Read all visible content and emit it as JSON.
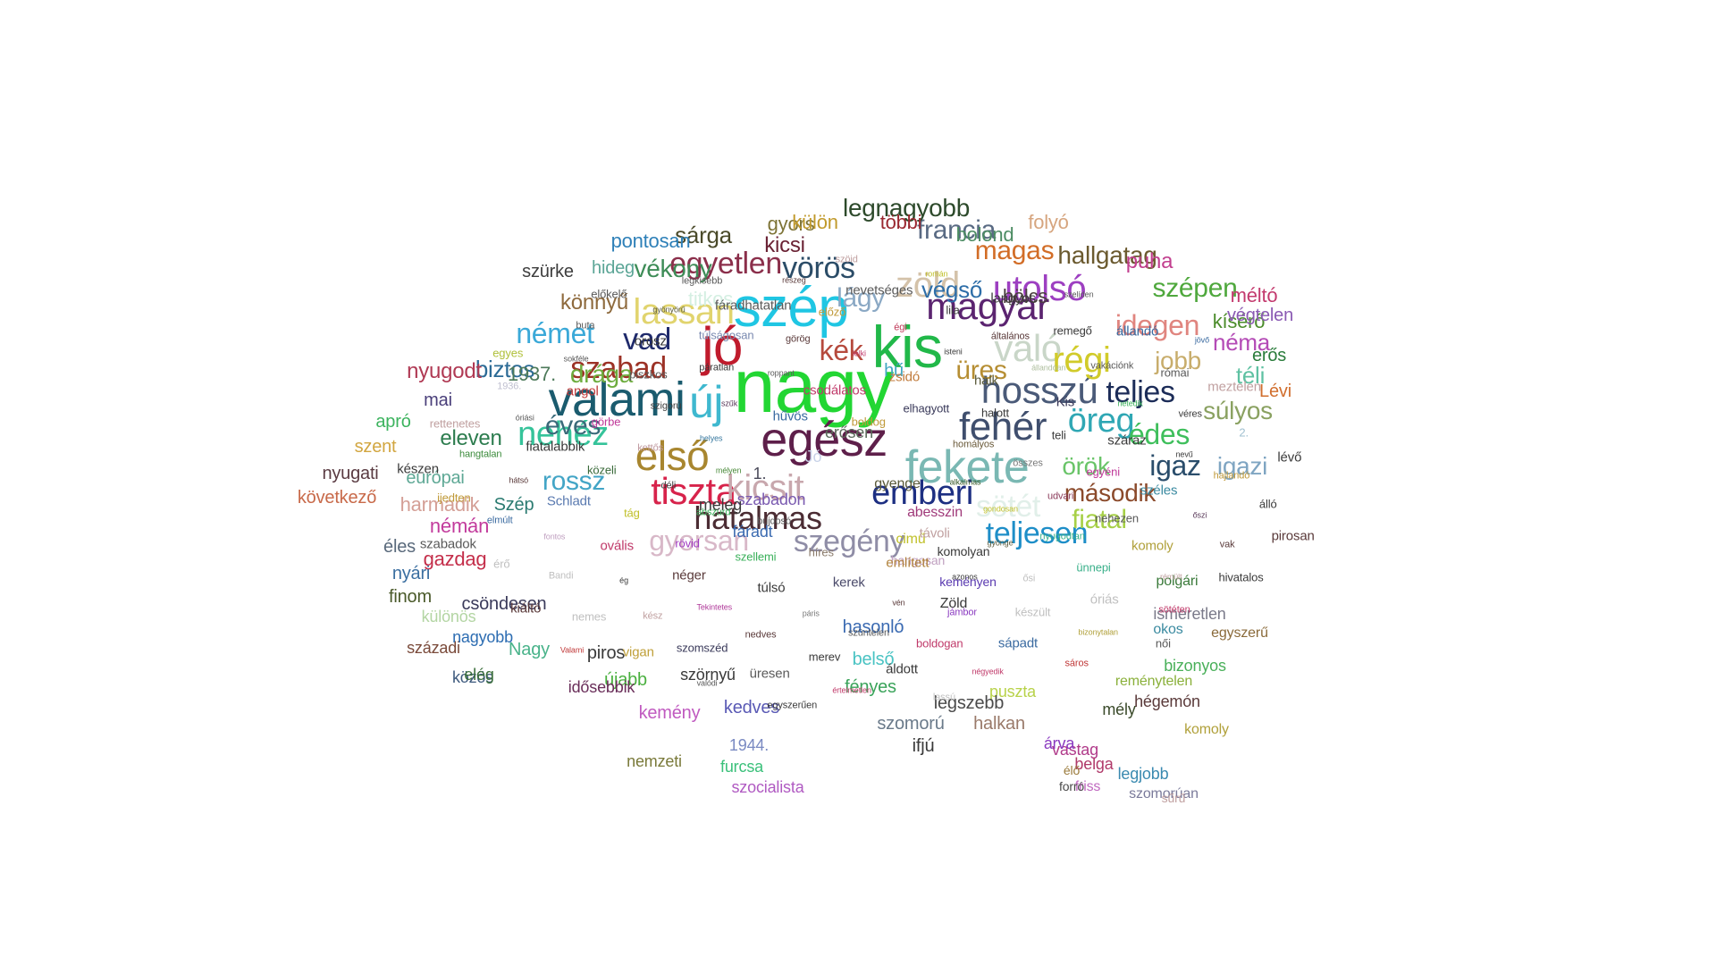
{
  "words": [
    {
      "text": "nagy",
      "color": "#22d633"
    },
    {
      "text": "kis",
      "color": "#21b849"
    },
    {
      "text": "szép",
      "color": "#1fc6e3"
    },
    {
      "text": "jó",
      "color": "#c01b2c"
    },
    {
      "text": "egész",
      "color": "#5e1f4a"
    },
    {
      "text": "valami",
      "color": "#1a5b6e"
    },
    {
      "text": "új",
      "color": "#3fb8cf"
    },
    {
      "text": "fekete",
      "color": "#7ab8b3"
    },
    {
      "text": "első",
      "color": "#a8862f"
    },
    {
      "text": "fehér",
      "color": "#3f4e6d"
    },
    {
      "text": "hosszú",
      "color": "#4a5a78"
    },
    {
      "text": "tiszta",
      "color": "#d7234b"
    },
    {
      "text": "magyar",
      "color": "#5b2470"
    },
    {
      "text": "kicsit",
      "color": "#c8a7ad"
    },
    {
      "text": "való",
      "color": "#c9d6c8"
    },
    {
      "text": "régi",
      "color": "#d1cb2a"
    },
    {
      "text": "öreg",
      "color": "#2fa7b4"
    },
    {
      "text": "emberi",
      "color": "#1d2f82"
    },
    {
      "text": "hatalmas",
      "color": "#4b2c33"
    },
    {
      "text": "zöld",
      "color": "#d4c2a9"
    },
    {
      "text": "utolsó",
      "color": "#9d3fc1"
    },
    {
      "text": "lassan",
      "color": "#e1d46e"
    },
    {
      "text": "nehéz",
      "color": "#35c39a"
    },
    {
      "text": "egyetlen",
      "color": "#8b2f4b"
    },
    {
      "text": "szabad",
      "color": "#9c3226"
    },
    {
      "text": "teljesen",
      "color": "#1e8ec8"
    },
    {
      "text": "szegény",
      "color": "#8f8da6"
    },
    {
      "text": "gyorsan",
      "color": "#d8b8c8"
    },
    {
      "text": "sötét",
      "color": "#e1efe9"
    },
    {
      "text": "vörös",
      "color": "#2b4c67"
    },
    {
      "text": "kék",
      "color": "#b64a3d"
    },
    {
      "text": "vad",
      "color": "#1f2a6b"
    },
    {
      "text": "német",
      "color": "#3ba9d8"
    },
    {
      "text": "rossz",
      "color": "#43a5c6"
    },
    {
      "text": "éves",
      "color": "#3a6a7a"
    },
    {
      "text": "teljes",
      "color": "#1c2c58"
    },
    {
      "text": "idegen",
      "color": "#e0857f"
    },
    {
      "text": "igaz",
      "color": "#2a4d6b"
    },
    {
      "text": "igazi",
      "color": "#7fa5c2"
    },
    {
      "text": "édes",
      "color": "#3fbf5c"
    },
    {
      "text": "jobb",
      "color": "#c8ad6c"
    },
    {
      "text": "fiatal",
      "color": "#a7d047"
    },
    {
      "text": "örök",
      "color": "#69c468"
    },
    {
      "text": "második",
      "color": "#8b4a2b"
    },
    {
      "text": "francia",
      "color": "#596a83"
    },
    {
      "text": "magas",
      "color": "#d26d27"
    },
    {
      "text": "szépen",
      "color": "#4fa83d"
    },
    {
      "text": "üres",
      "color": "#b68e33"
    },
    {
      "text": "súlyos",
      "color": "#8aa161"
    },
    {
      "text": "téli",
      "color": "#5ec1a2"
    },
    {
      "text": "hallgatag",
      "color": "#6b5a2f"
    },
    {
      "text": "puha",
      "color": "#c2408f"
    },
    {
      "text": "néma",
      "color": "#b44bb6"
    },
    {
      "text": "kísérő",
      "color": "#4b8c2b"
    },
    {
      "text": "erős",
      "color": "#2a7c3b"
    },
    {
      "text": "méltó",
      "color": "#c33a6e"
    },
    {
      "text": "végtelen",
      "color": "#8a5ab3"
    },
    {
      "text": "Lévi",
      "color": "#d16f2f"
    },
    {
      "text": "legnagyobb",
      "color": "#2d4a2b"
    },
    {
      "text": "sárga",
      "color": "#4a4a2a"
    },
    {
      "text": "vékony",
      "color": "#3e8c57"
    },
    {
      "text": "kicsi",
      "color": "#6a2234"
    },
    {
      "text": "lágy",
      "color": "#8aa8c4"
    },
    {
      "text": "végső",
      "color": "#2e6ea8"
    },
    {
      "text": "bölcs",
      "color": "#4b3f3f"
    },
    {
      "text": "folyó",
      "color": "#d6a57f"
    },
    {
      "text": "bolond",
      "color": "#4c8c63"
    },
    {
      "text": "többi",
      "color": "#9a2830"
    },
    {
      "text": "gyors",
      "color": "#7e7437"
    },
    {
      "text": "külön",
      "color": "#c19a2c"
    },
    {
      "text": "pontosan",
      "color": "#2e80b8"
    },
    {
      "text": "hideg",
      "color": "#5ba596"
    },
    {
      "text": "szürke",
      "color": "#3e3e3e"
    },
    {
      "text": "könnyű",
      "color": "#8e6a3d"
    },
    {
      "text": "titkos",
      "color": "#d4efe2"
    },
    {
      "text": "drága",
      "color": "#6dac3e"
    },
    {
      "text": "biztos",
      "color": "#2c6b96"
    },
    {
      "text": "nyugodt",
      "color": "#b03a54"
    },
    {
      "text": "1937.",
      "color": "#4d7a5a"
    },
    {
      "text": "hű",
      "color": "#40a6c2"
    },
    {
      "text": "mai",
      "color": "#4a3f7a"
    },
    {
      "text": "eleven",
      "color": "#2c7c4e"
    },
    {
      "text": "apró",
      "color": "#3cb35e"
    },
    {
      "text": "szent",
      "color": "#d2a640"
    },
    {
      "text": "nyugati",
      "color": "#5a3b42"
    },
    {
      "text": "következő",
      "color": "#c86a4a"
    },
    {
      "text": "európai",
      "color": "#5ea895"
    },
    {
      "text": "némán",
      "color": "#c23a9c"
    },
    {
      "text": "harmadik",
      "color": "#d49f96"
    },
    {
      "text": "Szép",
      "color": "#2b7b71"
    },
    {
      "text": "éles",
      "color": "#5a6a7c"
    },
    {
      "text": "gazdag",
      "color": "#c42e4a"
    },
    {
      "text": "nyári",
      "color": "#3a6ea0"
    },
    {
      "text": "finom",
      "color": "#4a5a2a"
    },
    {
      "text": "különös",
      "color": "#b3d5a3"
    },
    {
      "text": "századi",
      "color": "#7a4a3a"
    },
    {
      "text": "csöndesen",
      "color": "#3a3a5a"
    },
    {
      "text": "Nagy",
      "color": "#49b38a"
    },
    {
      "text": "nagyobb",
      "color": "#2d6db2"
    },
    {
      "text": "közös",
      "color": "#3e5a7e"
    },
    {
      "text": "elég",
      "color": "#3a6e3a"
    },
    {
      "text": "piros",
      "color": "#3a3a3a"
    },
    {
      "text": "újabb",
      "color": "#4ab03f"
    },
    {
      "text": "idősebbik",
      "color": "#6a2f5a"
    },
    {
      "text": "kemény",
      "color": "#c05ac0"
    },
    {
      "text": "kedves",
      "color": "#5a5ab5"
    },
    {
      "text": "szomorú",
      "color": "#6a7a8a"
    },
    {
      "text": "halkan",
      "color": "#9a7a6a"
    },
    {
      "text": "puszta",
      "color": "#b8d24a"
    },
    {
      "text": "legszebb",
      "color": "#4a4a4a"
    },
    {
      "text": "fényes",
      "color": "#3aa35a"
    },
    {
      "text": "hasonló",
      "color": "#3a6ab2"
    },
    {
      "text": "belső",
      "color": "#4ac3c3"
    },
    {
      "text": "1944.",
      "color": "#7a8ac2"
    },
    {
      "text": "szörnyű",
      "color": "#3a3a3a"
    },
    {
      "text": "furcsa",
      "color": "#3ac07a"
    },
    {
      "text": "nemzeti",
      "color": "#7a7a3a"
    },
    {
      "text": "szocialista",
      "color": "#b05ac2"
    },
    {
      "text": "ifjú",
      "color": "#3a3a3a"
    },
    {
      "text": "vastag",
      "color": "#b03a8a"
    },
    {
      "text": "mély",
      "color": "#3a4a2a"
    },
    {
      "text": "hégemón",
      "color": "#5a3a3a"
    },
    {
      "text": "bizonyos",
      "color": "#4ab05a"
    },
    {
      "text": "egyszerű",
      "color": "#8a6a3a"
    },
    {
      "text": "ismeretlen",
      "color": "#7a7a8a"
    },
    {
      "text": "okos",
      "color": "#3a8aa0"
    },
    {
      "text": "polgári",
      "color": "#3a7a3a"
    },
    {
      "text": "reménytelen",
      "color": "#8ab03a"
    },
    {
      "text": "komoly",
      "color": "#b0a03a"
    },
    {
      "text": "legjobb",
      "color": "#3a8ab0"
    },
    {
      "text": "szomorúan",
      "color": "#7a7a9a"
    },
    {
      "text": "belga",
      "color": "#b03a6a"
    },
    {
      "text": "friss",
      "color": "#c06ac0"
    },
    {
      "text": "sűrű",
      "color": "#c0a0a0"
    },
    {
      "text": "forró",
      "color": "#4a4a4a"
    },
    {
      "text": "árva",
      "color": "#8a3ac0"
    },
    {
      "text": "élő",
      "color": "#9a7a3a"
    },
    {
      "text": "1.",
      "color": "#4a4a5a"
    },
    {
      "text": "Jó",
      "color": "#c8d2e8"
    },
    {
      "text": "erősen",
      "color": "#5a6a5a"
    },
    {
      "text": "szabadon",
      "color": "#7a5ab0"
    },
    {
      "text": "fáradt",
      "color": "#3a6ab0"
    },
    {
      "text": "meleg",
      "color": "#3a3a3a"
    },
    {
      "text": "gyenge",
      "color": "#5a5a3a"
    },
    {
      "text": "abesszin",
      "color": "#a03a7a"
    },
    {
      "text": "cimű",
      "color": "#c0c02a"
    },
    {
      "text": "Zöld",
      "color": "#3a3a3a"
    },
    {
      "text": "keményen",
      "color": "#5a3ab0"
    },
    {
      "text": "hangosan",
      "color": "#c0a0c0"
    },
    {
      "text": "komolyan",
      "color": "#3a3a3a"
    },
    {
      "text": "alkalmas",
      "color": "#3a5a2a"
    },
    {
      "text": "bujdosó",
      "color": "#5a5a5a"
    },
    {
      "text": "boldog",
      "color": "#c09a3a"
    },
    {
      "text": "távoli",
      "color": "#c0a0a0"
    },
    {
      "text": "mélyen",
      "color": "#4a8a3a"
    },
    {
      "text": "homályos",
      "color": "#6a5a3a"
    },
    {
      "text": "híres",
      "color": "#8a7a6a"
    },
    {
      "text": "hűvös",
      "color": "#3a6aa0"
    },
    {
      "text": "gondosan",
      "color": "#c0c02a"
    },
    {
      "text": "abszurd",
      "color": "#3ab05a"
    },
    {
      "text": "elhagyott",
      "color": "#3a3a5a"
    },
    {
      "text": "említett",
      "color": "#b0803a"
    },
    {
      "text": "helyes",
      "color": "#3a7aa0"
    },
    {
      "text": "összes",
      "color": "#7a7a7a"
    },
    {
      "text": "szellemi",
      "color": "#3ab05a"
    },
    {
      "text": "csodálatos",
      "color": "#c03a6a"
    },
    {
      "text": "gyönge",
      "color": "#5a5a3a"
    },
    {
      "text": "déli",
      "color": "#3a3a3a"
    },
    {
      "text": "halott",
      "color": "#3a3a3a"
    },
    {
      "text": "kerek",
      "color": "#4a4a6a"
    },
    {
      "text": "szűk",
      "color": "#5a3a5a"
    },
    {
      "text": "udvari",
      "color": "#8a3a5a"
    },
    {
      "text": "rövid",
      "color": "#a03ac0"
    },
    {
      "text": "zsidó",
      "color": "#c07a3a"
    },
    {
      "text": "azonos",
      "color": "#3a3a3a"
    },
    {
      "text": "kettős",
      "color": "#c09aa0"
    },
    {
      "text": "teli",
      "color": "#3a3a3a"
    },
    {
      "text": "túlsó",
      "color": "#3a3a3a"
    },
    {
      "text": "roppant",
      "color": "#5a5a5a"
    },
    {
      "text": "nyugodtan",
      "color": "#3ab08a"
    },
    {
      "text": "tág",
      "color": "#c0c02a"
    },
    {
      "text": "halk",
      "color": "#5a5a3a"
    },
    {
      "text": "vén",
      "color": "#5a3a3a"
    },
    {
      "text": "szigorú",
      "color": "#3a3a3a"
    },
    {
      "text": "egyéni",
      "color": "#c03a9a"
    },
    {
      "text": "néger",
      "color": "#5a3a3a"
    },
    {
      "text": "lelki",
      "color": "#c03a6a"
    },
    {
      "text": "ősi",
      "color": "#c0c0c0"
    },
    {
      "text": "közeli",
      "color": "#3a6a3a"
    },
    {
      "text": "Kis",
      "color": "#3a3a5a"
    },
    {
      "text": "páris",
      "color": "#7a7a7a"
    },
    {
      "text": "páratlan",
      "color": "#3a3a3a"
    },
    {
      "text": "nehezen",
      "color": "#5a5a5a"
    },
    {
      "text": "ovális",
      "color": "#c03a6a"
    },
    {
      "text": "isteni",
      "color": "#3a3a3a"
    },
    {
      "text": "jámbor",
      "color": "#8a3ac0"
    },
    {
      "text": "görbe",
      "color": "#c03a9a"
    },
    {
      "text": "száraz",
      "color": "#3a3a3a"
    },
    {
      "text": "Tekintetes",
      "color": "#b03a9a"
    },
    {
      "text": "görög",
      "color": "#5a3a3a"
    },
    {
      "text": "ünnepi",
      "color": "#3ab08a"
    },
    {
      "text": "Schladt",
      "color": "#5a7ab0"
    },
    {
      "text": "állandóan",
      "color": "#b0c0a0"
    },
    {
      "text": "szüntelen",
      "color": "#5a5a5a"
    },
    {
      "text": "piszkos",
      "color": "#5a5a5a"
    },
    {
      "text": "széles",
      "color": "#3a8aa0"
    },
    {
      "text": "ég",
      "color": "#3a3a3a"
    },
    {
      "text": "égi",
      "color": "#c03a5a"
    },
    {
      "text": "készült",
      "color": "#c0c0c0"
    },
    {
      "text": "fiatalabbik",
      "color": "#3a3a3a"
    },
    {
      "text": "netedik",
      "color": "#3ab05a"
    },
    {
      "text": "nedves",
      "color": "#5a3a3a"
    },
    {
      "text": "túlságosan",
      "color": "#7a8ab0"
    },
    {
      "text": "komoly",
      "color": "#b0a03a"
    },
    {
      "text": "fontos",
      "color": "#c0a0c0"
    },
    {
      "text": "általános",
      "color": "#5a3a3a"
    },
    {
      "text": "boldogan",
      "color": "#c03a6a"
    },
    {
      "text": "angol",
      "color": "#c03a3a"
    },
    {
      "text": "nevű",
      "color": "#3a3a3a"
    },
    {
      "text": "kész",
      "color": "#c0a0a0"
    },
    {
      "text": "előző",
      "color": "#c09a3a"
    },
    {
      "text": "óriás",
      "color": "#c0c0c0"
    },
    {
      "text": "hátsó",
      "color": "#5a3a3a"
    },
    {
      "text": "vakációnk",
      "color": "#5a5a5a"
    },
    {
      "text": "merev",
      "color": "#3a3a3a"
    },
    {
      "text": "orosz",
      "color": "#3a3a3a"
    },
    {
      "text": "őszi",
      "color": "#5a3a5a"
    },
    {
      "text": "Bandi",
      "color": "#c0c0c0"
    },
    {
      "text": "lila",
      "color": "#3a3a3a"
    },
    {
      "text": "sápadt",
      "color": "#3a6aa0"
    },
    {
      "text": "óriási",
      "color": "#5a5a5a"
    },
    {
      "text": "véres",
      "color": "#3a3a3a"
    },
    {
      "text": "szomszéd",
      "color": "#3a3a5a"
    },
    {
      "text": "fáradhatatlan",
      "color": "#5a5a5a"
    },
    {
      "text": "rémült",
      "color": "#c0a0a0"
    },
    {
      "text": "elmúlt",
      "color": "#3a6aa0"
    },
    {
      "text": "remegő",
      "color": "#3a3a3a"
    },
    {
      "text": "áldott",
      "color": "#3a3a3a"
    },
    {
      "text": "sokféle",
      "color": "#5a5a5a"
    },
    {
      "text": "hajlandó",
      "color": "#c09a3a"
    },
    {
      "text": "nemes",
      "color": "#c0c0c0"
    },
    {
      "text": "nevetséges",
      "color": "#5a5a5a"
    },
    {
      "text": "bizonytalan",
      "color": "#b0a03a"
    },
    {
      "text": "hangtalan",
      "color": "#3a8a3a"
    },
    {
      "text": "római",
      "color": "#5a5a5a"
    },
    {
      "text": "üresen",
      "color": "#5a5a5a"
    },
    {
      "text": "gyönyörű",
      "color": "#5a5a3a"
    },
    {
      "text": "vak",
      "color": "#5a3a3a"
    },
    {
      "text": "érő",
      "color": "#c0c0c0"
    },
    {
      "text": "langyos",
      "color": "#3a3a3a"
    },
    {
      "text": "négyedik",
      "color": "#c03a6a"
    },
    {
      "text": "1936.",
      "color": "#c0c0d0"
    },
    {
      "text": "2.",
      "color": "#a0c0d0"
    },
    {
      "text": "vigan",
      "color": "#c0a03a"
    },
    {
      "text": "részeg",
      "color": "#5a3a3a"
    },
    {
      "text": "sötéten",
      "color": "#c03a6a"
    },
    {
      "text": "ijedten",
      "color": "#c09a3a"
    },
    {
      "text": "állandó",
      "color": "#3a6aa0"
    },
    {
      "text": "értelmetlen",
      "color": "#c03a6a"
    },
    {
      "text": "buta",
      "color": "#5a5a5a"
    },
    {
      "text": "álló",
      "color": "#3a3a3a"
    },
    {
      "text": "kiáltó",
      "color": "#5a3a3a"
    },
    {
      "text": "román",
      "color": "#c0c02a"
    },
    {
      "text": "sáros",
      "color": "#c03a3a"
    },
    {
      "text": "rettenetes",
      "color": "#c0a0a0"
    },
    {
      "text": "meztelen",
      "color": "#c0a0a0"
    },
    {
      "text": "valódi",
      "color": "#5a5a5a"
    },
    {
      "text": "legkisebb",
      "color": "#5a5a5a"
    },
    {
      "text": "hivatalos",
      "color": "#3a3a3a"
    },
    {
      "text": "szabadok",
      "color": "#5a5a5a"
    },
    {
      "text": "szelíden",
      "color": "#5a5a5a"
    },
    {
      "text": "lassú",
      "color": "#c0c0c0"
    },
    {
      "text": "egyes",
      "color": "#b0c03a"
    },
    {
      "text": "lévő",
      "color": "#3a3a3a"
    },
    {
      "text": "Valami",
      "color": "#c03a3a"
    },
    {
      "text": "szöid",
      "color": "#c0a0a0"
    },
    {
      "text": "női",
      "color": "#5a5a5a"
    },
    {
      "text": "készen",
      "color": "#3a3a3a"
    },
    {
      "text": "jövő",
      "color": "#3a6aa0"
    },
    {
      "text": "egyszerűen",
      "color": "#3a3a3a"
    },
    {
      "text": "előkelő",
      "color": "#5a5a5a"
    },
    {
      "text": "pirosan",
      "color": "#5a3a3a"
    }
  ]
}
